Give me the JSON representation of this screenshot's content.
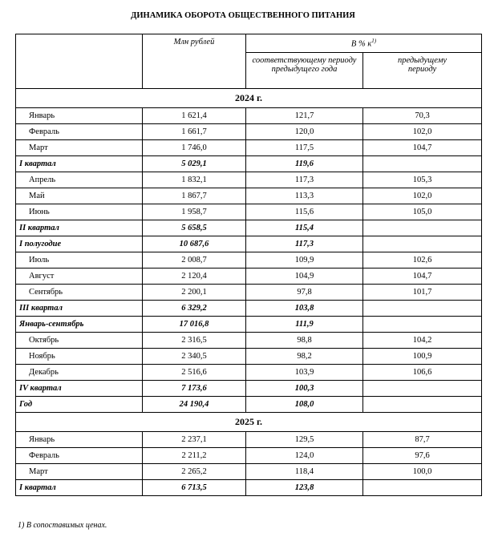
{
  "title": "ДИНАМИКА ОБОРОТА ОБЩЕСТВЕННОГО ПИТАНИЯ",
  "header": {
    "value": "Млн рублей",
    "percent_label": "В % к",
    "percent_note": "1)",
    "yoy": "соответствующему периоду предыдущего года",
    "prev": "предыдущему периоду"
  },
  "sections": [
    {
      "year": "2024 г.",
      "rows": [
        [
          "Январь",
          "1 621,4",
          "121,7",
          "70,3"
        ],
        [
          "Февраль",
          "1 661,7",
          "120,0",
          "102,0"
        ],
        [
          "Март",
          "1 746,0",
          "117,5",
          "104,7"
        ],
        [
          "I квартал",
          "5 029,1",
          "119,6",
          null
        ],
        [
          "Апрель",
          "1 832,1",
          "117,3",
          "105,3"
        ],
        [
          "Май",
          "1 867,7",
          "113,3",
          "102,0"
        ],
        [
          "Июнь",
          "1 958,7",
          "115,6",
          "105,0"
        ],
        [
          "II квартал",
          "5 658,5",
          "115,4",
          null
        ],
        [
          "I полугодие",
          "10 687,6",
          "117,3",
          null
        ],
        [
          "Июль",
          "2 008,7",
          "109,9",
          "102,6"
        ],
        [
          "Август",
          "2 120,4",
          "104,9",
          "104,7"
        ],
        [
          "Сентябрь",
          "2 200,1",
          "97,8",
          "101,7"
        ],
        [
          "III квартал",
          "6 329,2",
          "103,8",
          null
        ],
        [
          "Январь-сентябрь",
          "17 016,8",
          "111,9",
          null
        ],
        [
          "Октябрь",
          "2 316,5",
          "98,8",
          "104,2"
        ],
        [
          "Ноябрь",
          "2 340,5",
          "98,2",
          "100,9"
        ],
        [
          "Декабрь",
          "2 516,6",
          "103,9",
          "106,6"
        ],
        [
          "IV квартал",
          "7 173,6",
          "100,3",
          null
        ],
        [
          "Год",
          "24 190,4",
          "108,0",
          null
        ]
      ]
    },
    {
      "year": "2025 г.",
      "rows": [
        [
          "Январь",
          "2 237,1",
          "129,5",
          "87,7"
        ],
        [
          "Февраль",
          "2 211,2",
          "124,0",
          "97,6"
        ],
        [
          "Март",
          "2 265,2",
          "118,4",
          "100,0"
        ],
        [
          "I квартал",
          "6 713,5",
          "123,8",
          null
        ]
      ]
    }
  ],
  "footnote": "1) В сопоставимых ценах."
}
